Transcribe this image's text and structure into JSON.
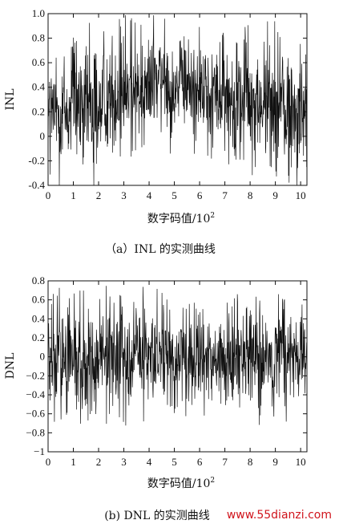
{
  "chart_data": [
    {
      "type": "line",
      "ylabel": "INL",
      "xlabel_text": "数字码值/10",
      "xlabel_sup": "2",
      "caption": "（a）INL 的实测曲线",
      "xlim": [
        0,
        10.25
      ],
      "ylim": [
        -0.4,
        1.0
      ],
      "xticks": [
        0,
        1,
        2,
        3,
        4,
        5,
        6,
        7,
        8,
        9,
        10
      ],
      "yticks": [
        -0.4,
        -0.2,
        0,
        0.2,
        0.4,
        0.6,
        0.8,
        1.0
      ],
      "ytick_labels": [
        "-0.4",
        "-0.2",
        "0",
        "0.2",
        "0.4",
        "0.6",
        "0.8",
        "1.0"
      ],
      "series": [
        {
          "values": [
            0.2,
            0.18,
            0.17,
            0.2,
            0.26,
            0.31,
            0.36,
            0.4,
            0.43,
            0.45,
            0.43,
            0.42,
            0.41,
            0.38,
            0.34,
            0.3,
            0.28,
            0.26,
            0.25,
            0.24,
            0.22,
            0.21
          ],
          "spread": [
            0.5,
            0.5,
            0.55,
            0.55,
            0.55,
            0.5,
            0.5,
            0.45,
            0.5,
            0.45,
            0.45,
            0.45,
            0.45,
            0.45,
            0.45,
            0.5,
            0.5,
            0.5,
            0.55,
            0.55,
            0.6,
            0.6
          ]
        }
      ]
    },
    {
      "type": "line",
      "ylabel": "DNL",
      "xlabel_text": "数字码值/10",
      "xlabel_sup": "2",
      "caption": "(b) DNL 的实测曲线",
      "xlim": [
        0,
        10.25
      ],
      "ylim": [
        -1.0,
        0.8
      ],
      "xticks": [
        0,
        1,
        2,
        3,
        4,
        5,
        6,
        7,
        8,
        9,
        10
      ],
      "yticks": [
        -1.0,
        -0.8,
        -0.6,
        -0.4,
        -0.2,
        0,
        0.2,
        0.4,
        0.6,
        0.8
      ],
      "ytick_labels": [
        "−1",
        "−0.8",
        "−0.6",
        "−0.4",
        "−0.2",
        "0",
        "0.2",
        "0.4",
        "0.6",
        "0.8"
      ],
      "series": [
        {
          "values": [
            0,
            0,
            0,
            0,
            0,
            0,
            0,
            0,
            0,
            0,
            0,
            0,
            0,
            0,
            0,
            0,
            0,
            0,
            0,
            0,
            0,
            0
          ],
          "spread": [
            0.6,
            0.65,
            0.6,
            0.55,
            0.55,
            0.6,
            0.6,
            0.55,
            0.6,
            0.6,
            0.5,
            0.55,
            0.6,
            0.55,
            0.5,
            0.55,
            0.6,
            0.6,
            0.55,
            0.6,
            0.55,
            0.55
          ]
        }
      ]
    }
  ],
  "watermark": "www.55dianzi.com"
}
